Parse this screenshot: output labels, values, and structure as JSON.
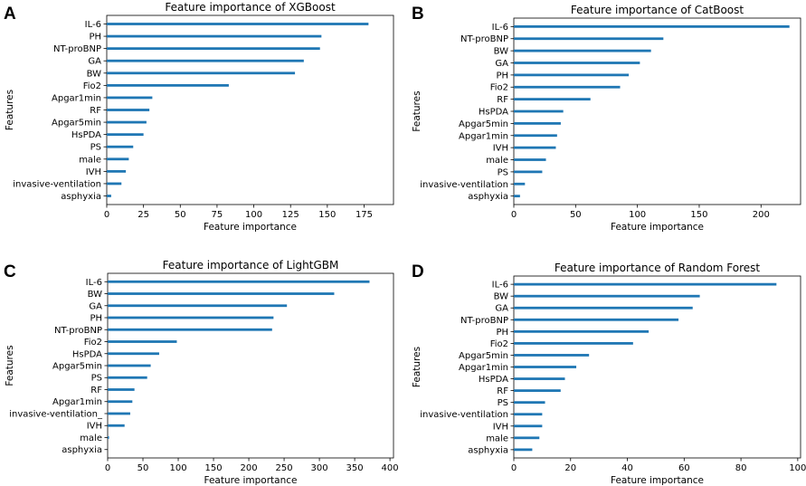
{
  "figure": {
    "bar_color": "#1f77b4",
    "axis_color": "#000000"
  },
  "chart_data": [
    {
      "panel": "A",
      "type": "bar",
      "orientation": "horizontal",
      "title": "Feature importance of XGBoost",
      "xlabel": "Feature importance",
      "ylabel": "Features",
      "xlim": [
        0,
        195
      ],
      "xticks": [
        0,
        25,
        50,
        75,
        100,
        125,
        150,
        175
      ],
      "categories": [
        "IL-6",
        "PH",
        "NT-proBNP",
        "GA",
        "BW",
        "Fio2",
        "Apgar1min",
        "RF",
        "Apgar5min",
        "HsPDA",
        "PS",
        "male",
        "IVH",
        "invasive-ventilation",
        "asphyxia"
      ],
      "values": [
        178,
        146,
        145,
        134,
        128,
        83,
        31,
        29,
        27,
        25,
        18,
        15,
        13,
        10,
        3
      ]
    },
    {
      "panel": "B",
      "type": "bar",
      "orientation": "horizontal",
      "title": "Feature importance of CatBoost",
      "xlabel": "Feature importance",
      "ylabel": "Features",
      "xlim": [
        0,
        232
      ],
      "xticks": [
        0,
        50,
        100,
        150,
        200
      ],
      "categories": [
        "IL-6",
        "NT-proBNP",
        "BW",
        "GA",
        "PH",
        "Fio2",
        "RF",
        "HsPDA",
        "Apgar5min",
        "Apgar1min",
        "IVH",
        "male",
        "PS",
        "invasive-ventilation",
        "asphyxia"
      ],
      "values": [
        223,
        121,
        111,
        102,
        93,
        86,
        62,
        40,
        38,
        35,
        34,
        26,
        23,
        9,
        5
      ]
    },
    {
      "panel": "C",
      "type": "bar",
      "orientation": "horizontal",
      "title": "Feature importance of LightGBM",
      "xlabel": "Feature importance",
      "ylabel": "Features",
      "xlim": [
        0,
        405
      ],
      "xticks": [
        0,
        50,
        100,
        150,
        200,
        250,
        300,
        350,
        400
      ],
      "categories": [
        "IL-6",
        "BW",
        "GA",
        "PH",
        "NT-proBNP",
        "Fio2",
        "HsPDA",
        "Apgar5min",
        "PS",
        "RF",
        "Apgar1min",
        "invasive-ventilation_",
        "IVH",
        "male",
        "asphyxia"
      ],
      "values": [
        371,
        321,
        254,
        235,
        233,
        98,
        73,
        61,
        56,
        38,
        35,
        32,
        24,
        2,
        0
      ]
    },
    {
      "panel": "D",
      "type": "bar",
      "orientation": "horizontal",
      "title": "Feature importance of Random Forest",
      "xlabel": "Feature importance",
      "ylabel": "Features",
      "xlim": [
        0,
        101
      ],
      "xticks": [
        0,
        20,
        40,
        60,
        80,
        100
      ],
      "categories": [
        "IL-6",
        "BW",
        "GA",
        "NT-proBNP",
        "PH",
        "Fio2",
        "Apgar5min",
        "Apgar1min",
        "HsPDA",
        "RF",
        "PS",
        "invasive-ventilation",
        "IVH",
        "male",
        "asphyxia"
      ],
      "values": [
        92.5,
        65.5,
        63,
        58,
        47.5,
        42,
        26.5,
        22,
        18,
        16.5,
        11,
        10,
        10,
        9,
        6.5
      ]
    }
  ]
}
